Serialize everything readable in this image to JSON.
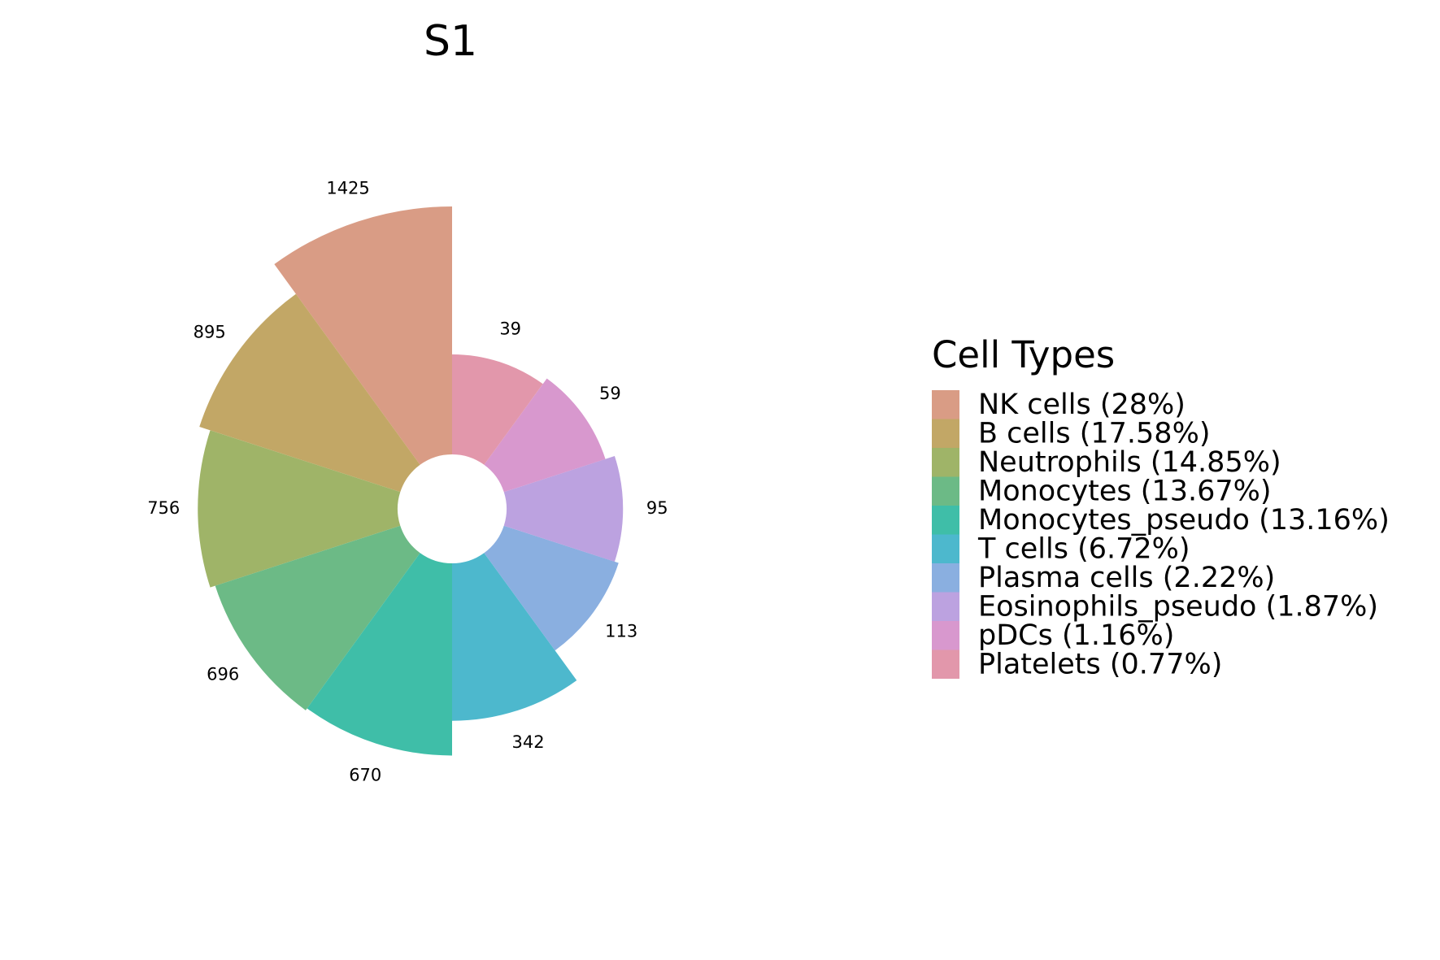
{
  "chart_data": {
    "type": "polar-bar",
    "title": "S1",
    "legend_title": "Cell Types",
    "legend_position": "right",
    "categories": [
      "NK cells",
      "B cells",
      "Neutrophils",
      "Monocytes",
      "Monocytes_pseudo",
      "T cells",
      "Plasma cells",
      "Eosinophils_pseudo",
      "pDCs",
      "Platelets"
    ],
    "values": [
      1425,
      895,
      756,
      696,
      670,
      342,
      113,
      95,
      59,
      39
    ],
    "value_labels": [
      "1425",
      "895",
      "756",
      "696",
      "670",
      "342",
      "113",
      "95",
      "59",
      "39"
    ],
    "legend_labels": [
      "NK cells (28%)",
      "B cells (17.58%)",
      "Neutrophils (14.85%)",
      "Monocytes (13.67%)",
      "Monocytes_pseudo (13.16%)",
      "T cells (6.72%)",
      "Plasma cells (2.22%)",
      "Eosinophils_pseudo (1.87%)",
      "pDCs (1.16%)",
      "Platelets (0.77%)"
    ],
    "colors": [
      "#d99c85",
      "#c2a766",
      "#9fb468",
      "#6cba86",
      "#3fbea8",
      "#4db8cd",
      "#8aafe0",
      "#bca2e0",
      "#d898ce",
      "#e297ab"
    ],
    "segment_order": "counter-clockwise from top"
  }
}
